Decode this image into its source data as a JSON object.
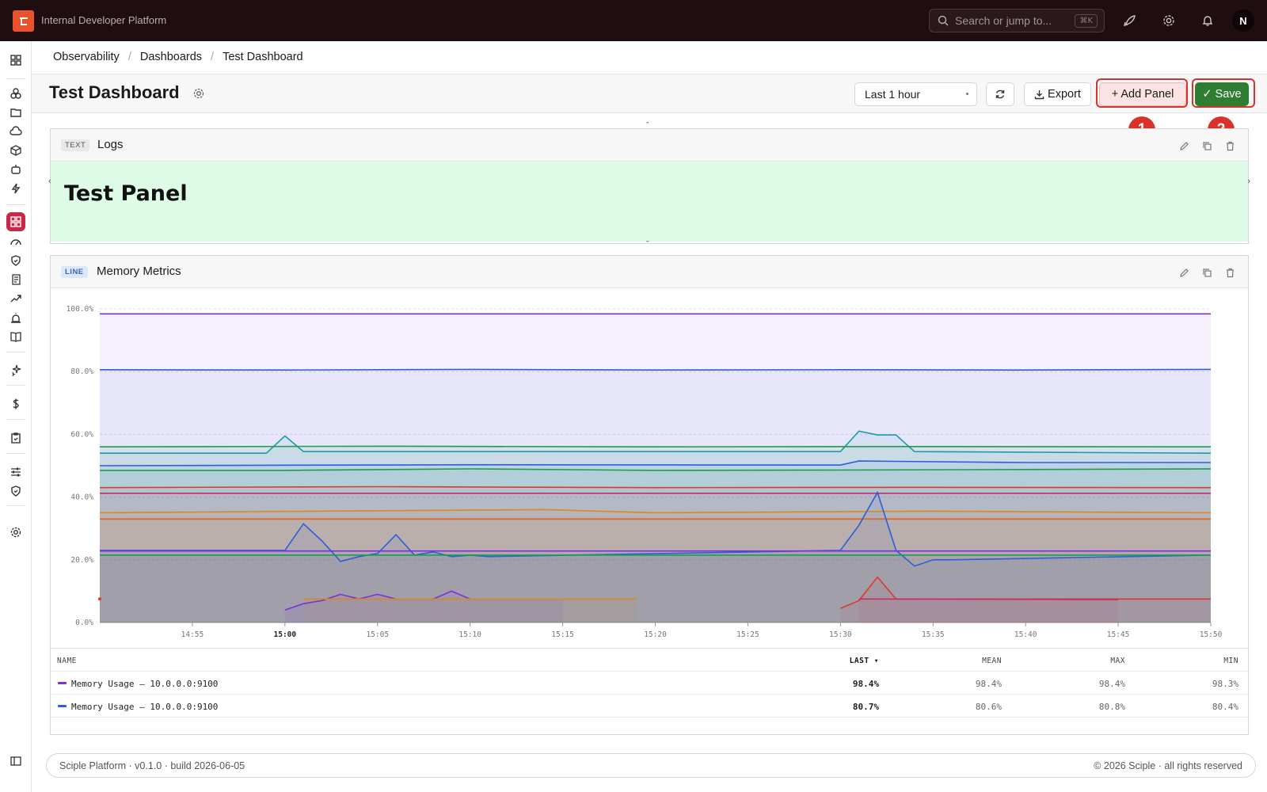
{
  "topbar": {
    "app_title": "Internal Developer Platform",
    "search_placeholder": "Search or jump to...",
    "search_shortcut": "⌘K",
    "avatar_initial": "N"
  },
  "breadcrumb": [
    "Observability",
    "Dashboards",
    "Test Dashboard"
  ],
  "header": {
    "title": "Test Dashboard",
    "time_range": "Last 1 hour",
    "export_label": "Export",
    "add_panel_label": "+ Add Panel",
    "save_label": "✓ Save"
  },
  "annotations": [
    "1",
    "2"
  ],
  "panels": [
    {
      "type_badge": "TEXT",
      "title": "Logs",
      "content": "Test Panel"
    },
    {
      "type_badge": "LINE",
      "title": "Memory Metrics"
    }
  ],
  "chart_data": {
    "type": "area",
    "y_tick_labels": [
      "100.0%",
      "80.0%",
      "60.0%",
      "40.0%",
      "20.0%",
      "0.0%"
    ],
    "x_tick_labels": [
      "14:55",
      "15:00",
      "15:05",
      "15:10",
      "15:15",
      "15:20",
      "15:25",
      "15:30",
      "15:35",
      "15:40",
      "15:45",
      "15:50"
    ],
    "ylim": [
      0,
      100
    ],
    "xlim_minutes": [
      0,
      60
    ],
    "grid": true,
    "series": [
      {
        "color": "#7b2fe0",
        "x": [
          0,
          60
        ],
        "y": [
          98.4,
          98.4
        ]
      },
      {
        "color": "#2b5fd9",
        "x": [
          0,
          10,
          20,
          30,
          40,
          50,
          60
        ],
        "y": [
          80.6,
          80.5,
          80.7,
          80.5,
          80.6,
          80.5,
          80.7
        ]
      },
      {
        "color": "#1d9aa8",
        "x": [
          0,
          9,
          10,
          11,
          40,
          41,
          42,
          43,
          44,
          60
        ],
        "y": [
          54,
          54,
          59.5,
          54.5,
          54.5,
          61,
          59.8,
          59.8,
          54.5,
          54
        ]
      },
      {
        "color": "#1a9e4a",
        "x": [
          0,
          15,
          30,
          45,
          60
        ],
        "y": [
          56,
          56.2,
          56,
          56.1,
          56
        ]
      },
      {
        "color": "#2b5fd9",
        "x": [
          0,
          20,
          40,
          41,
          50,
          60
        ],
        "y": [
          50,
          50.3,
          50.2,
          51.5,
          51,
          51
        ]
      },
      {
        "color": "#1a9e4a",
        "x": [
          0,
          10,
          20,
          30,
          40,
          50,
          60
        ],
        "y": [
          48.5,
          48.5,
          49,
          48.5,
          48.6,
          48.8,
          49
        ]
      },
      {
        "color": "#d93d2a",
        "x": [
          0,
          15,
          30,
          45,
          60
        ],
        "y": [
          43,
          43.3,
          43,
          43.1,
          43
        ]
      },
      {
        "color": "#c42d6e",
        "x": [
          0,
          60
        ],
        "y": [
          41.2,
          41.2
        ]
      },
      {
        "color": "#d88b1c",
        "x": [
          0,
          24,
          30,
          45,
          60
        ],
        "y": [
          35,
          36,
          35,
          35.5,
          35
        ]
      },
      {
        "color": "#e6611a",
        "x": [
          0,
          60
        ],
        "y": [
          33,
          33
        ]
      },
      {
        "color": "#2b5fd9",
        "x": [
          0,
          9,
          10,
          11,
          12,
          13,
          14,
          15,
          16,
          17,
          18,
          19,
          20,
          21,
          40,
          41,
          42,
          43,
          44,
          45,
          46,
          60
        ],
        "y": [
          23,
          23,
          23,
          31.5,
          26,
          19.5,
          21,
          22,
          28,
          21.5,
          22.5,
          21,
          21.5,
          21,
          23,
          31,
          41.5,
          23,
          18,
          20,
          20,
          21.5
        ]
      },
      {
        "color": "#7b2fe0",
        "x": [
          0,
          60
        ],
        "y": [
          22.8,
          22.8
        ]
      },
      {
        "color": "#1a9e4a",
        "x": [
          0,
          60
        ],
        "y": [
          21.5,
          21.5
        ]
      },
      {
        "color": "#7b2fe0",
        "x": [
          10,
          11,
          12,
          13,
          14,
          15,
          16,
          17,
          18,
          19,
          20,
          25
        ],
        "y": [
          4,
          6,
          7,
          9,
          7.5,
          9,
          7.5,
          7.5,
          7.5,
          10,
          7.5,
          7.5
        ]
      },
      {
        "color": "#d88b1c",
        "x": [
          11,
          29
        ],
        "y": [
          7.5,
          7.5
        ]
      },
      {
        "color": "#d93d2a",
        "x": [
          40,
          41,
          42,
          43,
          44,
          60
        ],
        "y": [
          4.5,
          7,
          14.5,
          7.5,
          7.5,
          7.5
        ]
      },
      {
        "color": "#c42d6e",
        "x": [
          41,
          55
        ],
        "y": [
          7.5,
          7.3
        ]
      }
    ]
  },
  "legend_table": {
    "columns": [
      "NAME",
      "LAST ▾",
      "MEAN",
      "MAX",
      "MIN"
    ],
    "rows": [
      {
        "color": "#7b2fe0",
        "name": "Memory Usage — 10.0.0.0:9100",
        "last": "98.4%",
        "mean": "98.4%",
        "max": "98.4%",
        "min": "98.3%"
      },
      {
        "color": "#2b5fd9",
        "name": "Memory Usage — 10.0.0.0:9100",
        "last": "80.7%",
        "mean": "80.6%",
        "max": "80.8%",
        "min": "80.4%"
      }
    ]
  },
  "footer": {
    "left": "Sciple Platform · v0.1.0 · build 2026-06-05",
    "right": "© 2026 Sciple · all rights reserved"
  }
}
